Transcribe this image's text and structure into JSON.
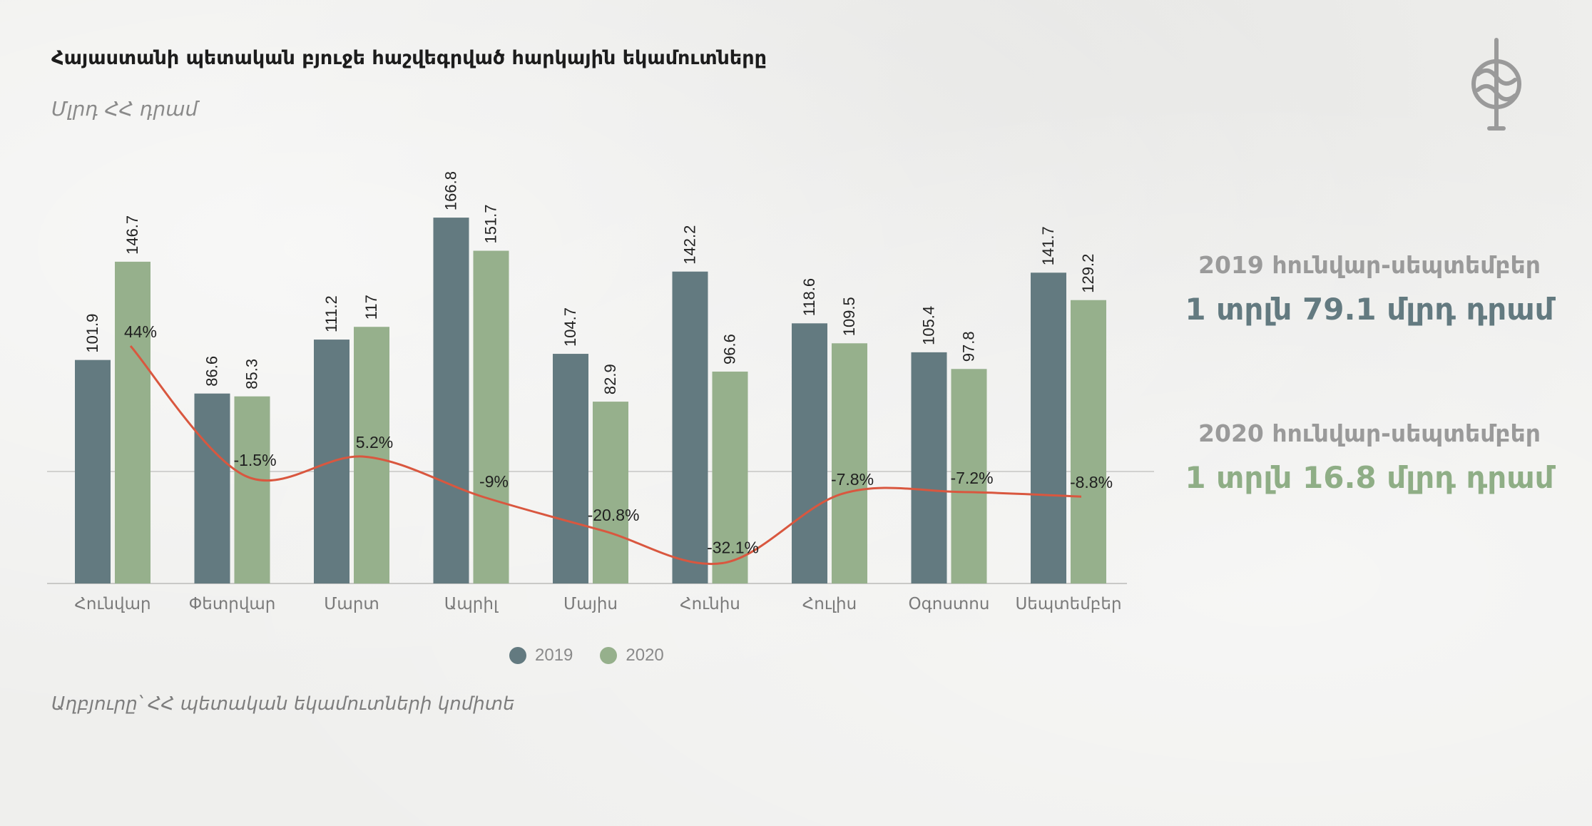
{
  "title": "Հայաստանի պետական բյուջե հաշվեգրված հարկային եկամուտները",
  "subtitle": "Մլրդ ՀՀ դրամ",
  "source": "Աղբյուրը՝ ՀՀ պետական եկամուտների կոմիտե",
  "summary": {
    "y2019": {
      "period": "2019 հունվար-սեպտեմբեր",
      "amount": "1 տրլն 79.1 մլրդ դրամ"
    },
    "y2020": {
      "period": "2020 հունվար-սեպտեմբեր",
      "amount": "1 տրլն 16.8 մլրդ դրամ"
    }
  },
  "colors": {
    "y2019": "#637a80",
    "y2020": "#96b08c",
    "line": "#d9573f"
  },
  "icons": {
    "logo": "emblem-icon"
  },
  "chart_data": {
    "type": "bar",
    "categories": [
      "Հունվար",
      "Փետրվար",
      "Մարտ",
      "Ապրիլ",
      "Մայիս",
      "Հունիս",
      "Հուլիս",
      "Օգոստոս",
      "Սեպտեմբեր"
    ],
    "series": [
      {
        "name": "2019",
        "values": [
          101.9,
          86.6,
          111.2,
          166.8,
          104.7,
          142.2,
          118.6,
          105.4,
          141.7
        ],
        "labels": [
          "101.9",
          "86.6",
          "111.2",
          "166.8",
          "104.7",
          "142.2",
          "118.6",
          "105.4",
          "141.7"
        ]
      },
      {
        "name": "2020",
        "values": [
          146.7,
          85.3,
          117,
          151.7,
          82.9,
          96.6,
          109.5,
          97.8,
          129.2
        ],
        "labels": [
          "146.7",
          "85.3",
          "117",
          "151.7",
          "82.9",
          "96.6",
          "109.5",
          "97.8",
          "129.2"
        ]
      }
    ],
    "change": {
      "type": "line",
      "values": [
        44,
        -1.5,
        5.2,
        -9,
        -20.8,
        -32.1,
        -7.8,
        -7.2,
        -8.8
      ],
      "labels": [
        "44%",
        "-1.5%",
        "5.2%",
        "-9%",
        "-20.8%",
        "-32.1%",
        "-7.8%",
        "-7.2%",
        "-8.8%"
      ]
    },
    "xlabel": "",
    "ylabel": "",
    "legend": "bottom-center",
    "grid": false
  }
}
